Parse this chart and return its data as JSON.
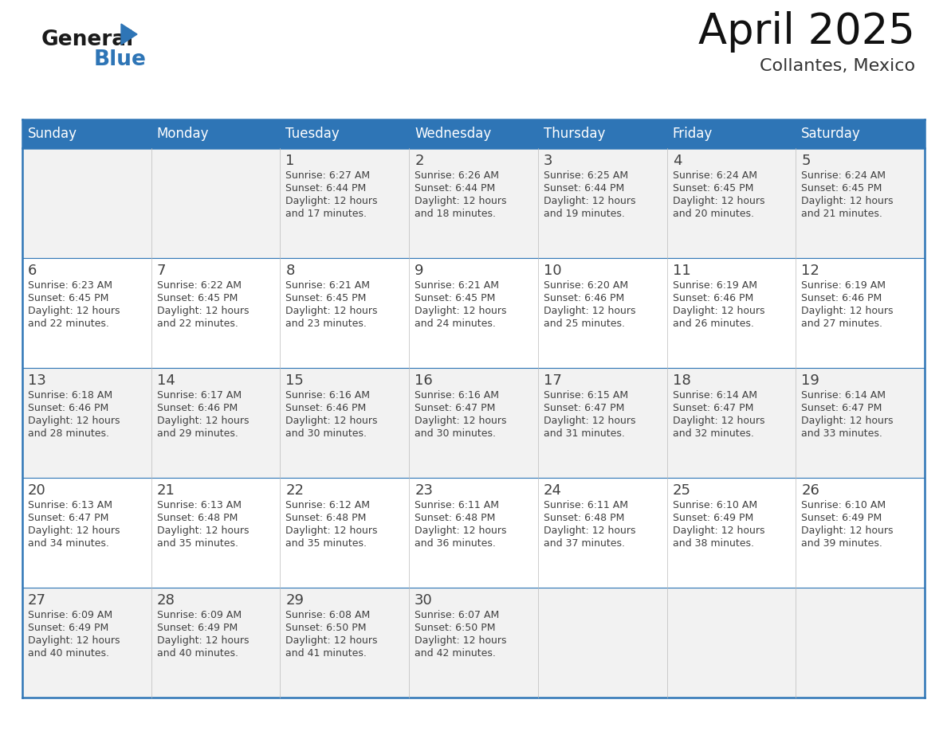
{
  "title": "April 2025",
  "subtitle": "Collantes, Mexico",
  "header_bg_color": "#2E75B6",
  "header_text_color": "#FFFFFF",
  "odd_row_bg": "#F2F2F2",
  "even_row_bg": "#FFFFFF",
  "border_color": "#2E75B6",
  "text_color": "#404040",
  "days_of_week": [
    "Sunday",
    "Monday",
    "Tuesday",
    "Wednesday",
    "Thursday",
    "Friday",
    "Saturday"
  ],
  "calendar_data": [
    [
      {
        "day": "",
        "sunrise": "",
        "sunset": "",
        "daylight": ""
      },
      {
        "day": "",
        "sunrise": "",
        "sunset": "",
        "daylight": ""
      },
      {
        "day": "1",
        "sunrise": "6:27 AM",
        "sunset": "6:44 PM",
        "daylight": "and 17 minutes."
      },
      {
        "day": "2",
        "sunrise": "6:26 AM",
        "sunset": "6:44 PM",
        "daylight": "and 18 minutes."
      },
      {
        "day": "3",
        "sunrise": "6:25 AM",
        "sunset": "6:44 PM",
        "daylight": "and 19 minutes."
      },
      {
        "day": "4",
        "sunrise": "6:24 AM",
        "sunset": "6:45 PM",
        "daylight": "and 20 minutes."
      },
      {
        "day": "5",
        "sunrise": "6:24 AM",
        "sunset": "6:45 PM",
        "daylight": "and 21 minutes."
      }
    ],
    [
      {
        "day": "6",
        "sunrise": "6:23 AM",
        "sunset": "6:45 PM",
        "daylight": "and 22 minutes."
      },
      {
        "day": "7",
        "sunrise": "6:22 AM",
        "sunset": "6:45 PM",
        "daylight": "and 22 minutes."
      },
      {
        "day": "8",
        "sunrise": "6:21 AM",
        "sunset": "6:45 PM",
        "daylight": "and 23 minutes."
      },
      {
        "day": "9",
        "sunrise": "6:21 AM",
        "sunset": "6:45 PM",
        "daylight": "and 24 minutes."
      },
      {
        "day": "10",
        "sunrise": "6:20 AM",
        "sunset": "6:46 PM",
        "daylight": "and 25 minutes."
      },
      {
        "day": "11",
        "sunrise": "6:19 AM",
        "sunset": "6:46 PM",
        "daylight": "and 26 minutes."
      },
      {
        "day": "12",
        "sunrise": "6:19 AM",
        "sunset": "6:46 PM",
        "daylight": "and 27 minutes."
      }
    ],
    [
      {
        "day": "13",
        "sunrise": "6:18 AM",
        "sunset": "6:46 PM",
        "daylight": "and 28 minutes."
      },
      {
        "day": "14",
        "sunrise": "6:17 AM",
        "sunset": "6:46 PM",
        "daylight": "and 29 minutes."
      },
      {
        "day": "15",
        "sunrise": "6:16 AM",
        "sunset": "6:46 PM",
        "daylight": "and 30 minutes."
      },
      {
        "day": "16",
        "sunrise": "6:16 AM",
        "sunset": "6:47 PM",
        "daylight": "and 30 minutes."
      },
      {
        "day": "17",
        "sunrise": "6:15 AM",
        "sunset": "6:47 PM",
        "daylight": "and 31 minutes."
      },
      {
        "day": "18",
        "sunrise": "6:14 AM",
        "sunset": "6:47 PM",
        "daylight": "and 32 minutes."
      },
      {
        "day": "19",
        "sunrise": "6:14 AM",
        "sunset": "6:47 PM",
        "daylight": "and 33 minutes."
      }
    ],
    [
      {
        "day": "20",
        "sunrise": "6:13 AM",
        "sunset": "6:47 PM",
        "daylight": "and 34 minutes."
      },
      {
        "day": "21",
        "sunrise": "6:13 AM",
        "sunset": "6:48 PM",
        "daylight": "and 35 minutes."
      },
      {
        "day": "22",
        "sunrise": "6:12 AM",
        "sunset": "6:48 PM",
        "daylight": "and 35 minutes."
      },
      {
        "day": "23",
        "sunrise": "6:11 AM",
        "sunset": "6:48 PM",
        "daylight": "and 36 minutes."
      },
      {
        "day": "24",
        "sunrise": "6:11 AM",
        "sunset": "6:48 PM",
        "daylight": "and 37 minutes."
      },
      {
        "day": "25",
        "sunrise": "6:10 AM",
        "sunset": "6:49 PM",
        "daylight": "and 38 minutes."
      },
      {
        "day": "26",
        "sunrise": "6:10 AM",
        "sunset": "6:49 PM",
        "daylight": "and 39 minutes."
      }
    ],
    [
      {
        "day": "27",
        "sunrise": "6:09 AM",
        "sunset": "6:49 PM",
        "daylight": "and 40 minutes."
      },
      {
        "day": "28",
        "sunrise": "6:09 AM",
        "sunset": "6:49 PM",
        "daylight": "and 40 minutes."
      },
      {
        "day": "29",
        "sunrise": "6:08 AM",
        "sunset": "6:50 PM",
        "daylight": "and 41 minutes."
      },
      {
        "day": "30",
        "sunrise": "6:07 AM",
        "sunset": "6:50 PM",
        "daylight": "and 42 minutes."
      },
      {
        "day": "",
        "sunrise": "",
        "sunset": "",
        "daylight": ""
      },
      {
        "day": "",
        "sunrise": "",
        "sunset": "",
        "daylight": ""
      },
      {
        "day": "",
        "sunrise": "",
        "sunset": "",
        "daylight": ""
      }
    ]
  ],
  "logo_general_color": "#1a1a1a",
  "logo_blue_color": "#2E75B6",
  "logo_triangle_color": "#2E75B6",
  "title_fontsize": 38,
  "subtitle_fontsize": 16,
  "header_fontsize": 12,
  "day_num_fontsize": 13,
  "cell_text_fontsize": 9
}
